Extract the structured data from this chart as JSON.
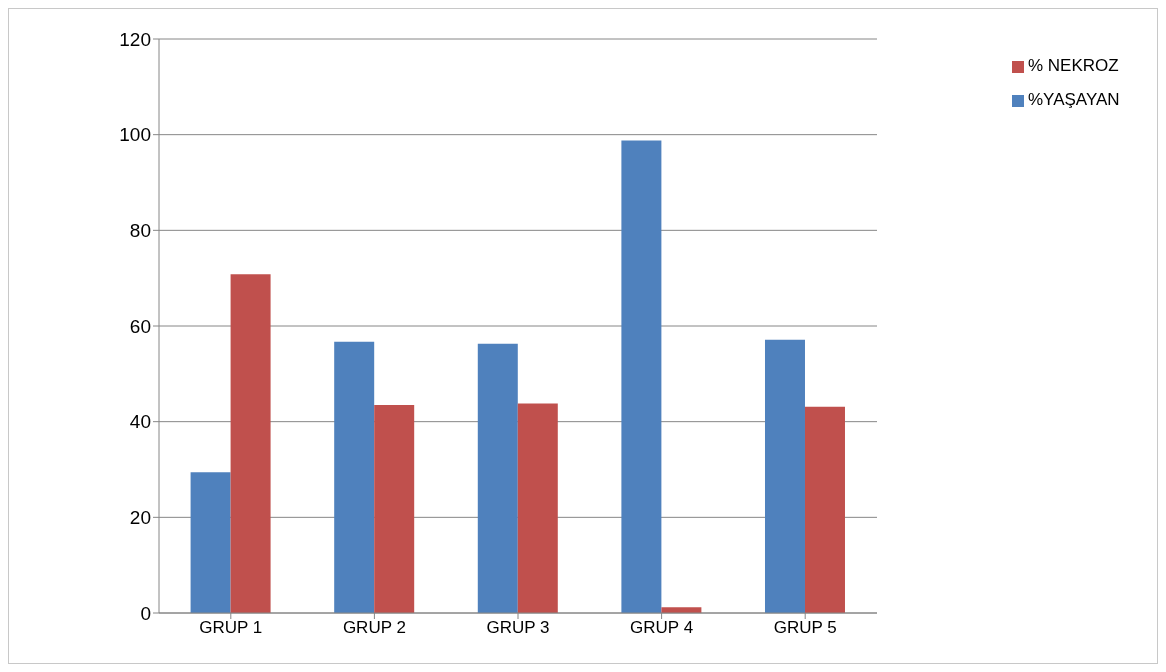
{
  "chart_data": {
    "type": "bar",
    "categories": [
      "GRUP 1",
      "GRUP 2",
      "GRUP 3",
      "GRUP 4",
      "GRUP 5"
    ],
    "series": [
      {
        "name": "%YAŞAYAN",
        "color": "#4f81bd",
        "values": [
          29.4,
          56.7,
          56.3,
          98.8,
          57.1
        ]
      },
      {
        "name": "% NEKROZ",
        "color": "#c0504d",
        "values": [
          70.8,
          43.5,
          43.8,
          1.2,
          43.1
        ]
      }
    ],
    "ylim": [
      0,
      120
    ],
    "yticks": [
      0,
      20,
      40,
      60,
      80,
      100,
      120
    ],
    "grid": "y",
    "legend": "top right"
  }
}
